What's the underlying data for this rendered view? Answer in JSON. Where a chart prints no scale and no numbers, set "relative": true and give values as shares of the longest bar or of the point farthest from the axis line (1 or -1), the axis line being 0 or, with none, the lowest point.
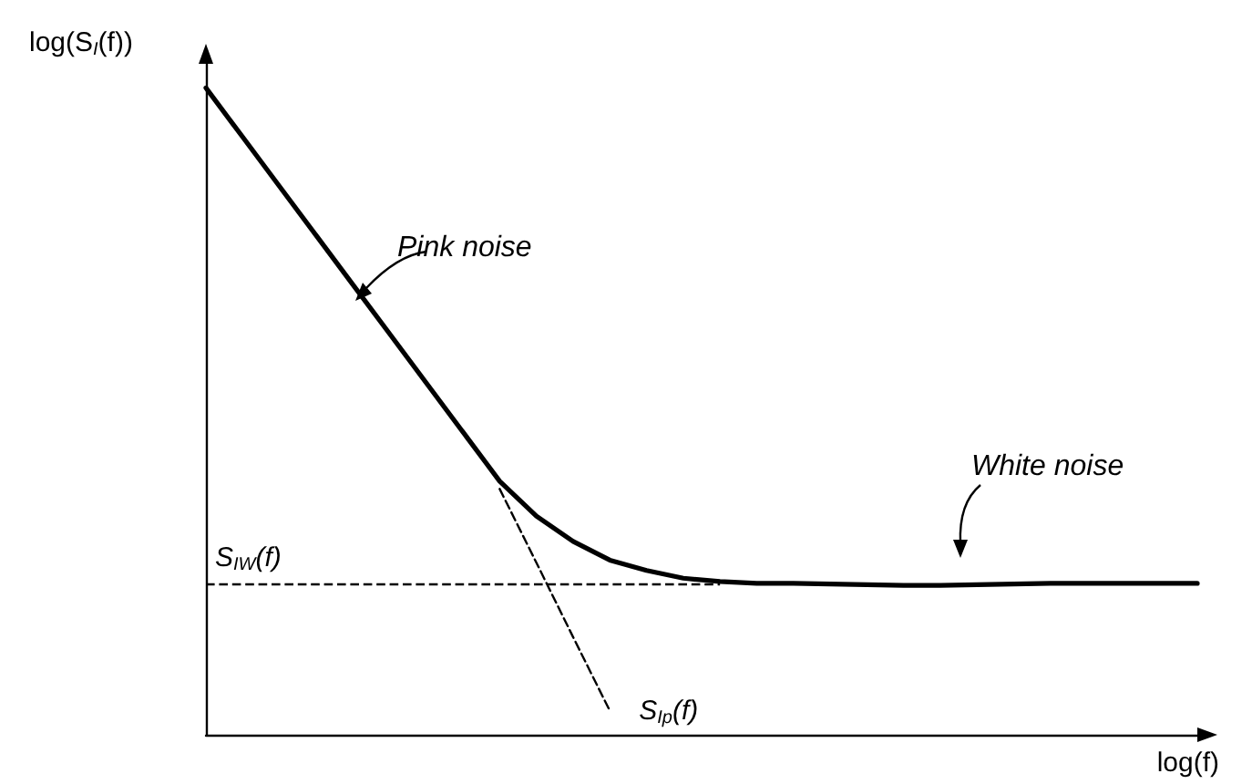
{
  "chart_data": {
    "type": "line",
    "relative": true,
    "xlabel": "log(f)",
    "ylabel": "log(S$_{I}$(f))",
    "categories": [
      null,
      null,
      null,
      null,
      null,
      null,
      null,
      null,
      null,
      null,
      null,
      null,
      null,
      null,
      null,
      null,
      null,
      null,
      null,
      null,
      null,
      null,
      null,
      null,
      null,
      null,
      null,
      null
    ],
    "series": [
      {
        "color": "#000000",
        "values": [
          1,
          0.924,
          0.848,
          0.772,
          0.696,
          0.62,
          0.544,
          0.468,
          0.392,
          0.338,
          0.299,
          0.27,
          0.254,
          0.242,
          0.237,
          0.234,
          0.234,
          0.233,
          0.232,
          0.231,
          0.231,
          0.232,
          0.233,
          0.234,
          0.234,
          0.234,
          0.234,
          0.234
        ]
      },
      {
        "name": "S$_{Ip}$(f)",
        "type": "line",
        "line_style": "dashed",
        "color": "#000000",
        "values": [
          null,
          null,
          null,
          null,
          null,
          null,
          null,
          null,
          0.38,
          0.266,
          0.151,
          0.037,
          null,
          null,
          null,
          null,
          null,
          null,
          null,
          null,
          null,
          null,
          null,
          null,
          null,
          null,
          null,
          null
        ]
      }
    ],
    "ref_lines": [
      {
        "axis": "y",
        "value": 0.234,
        "label": "S$_{IW}$(f)",
        "line_style": "dashed",
        "color": "#000000"
      }
    ],
    "annotations": [
      "Pink noise",
      "White noise"
    ],
    "grid": false,
    "legend": false,
    "marker": "none",
    "line_style": "solid"
  }
}
